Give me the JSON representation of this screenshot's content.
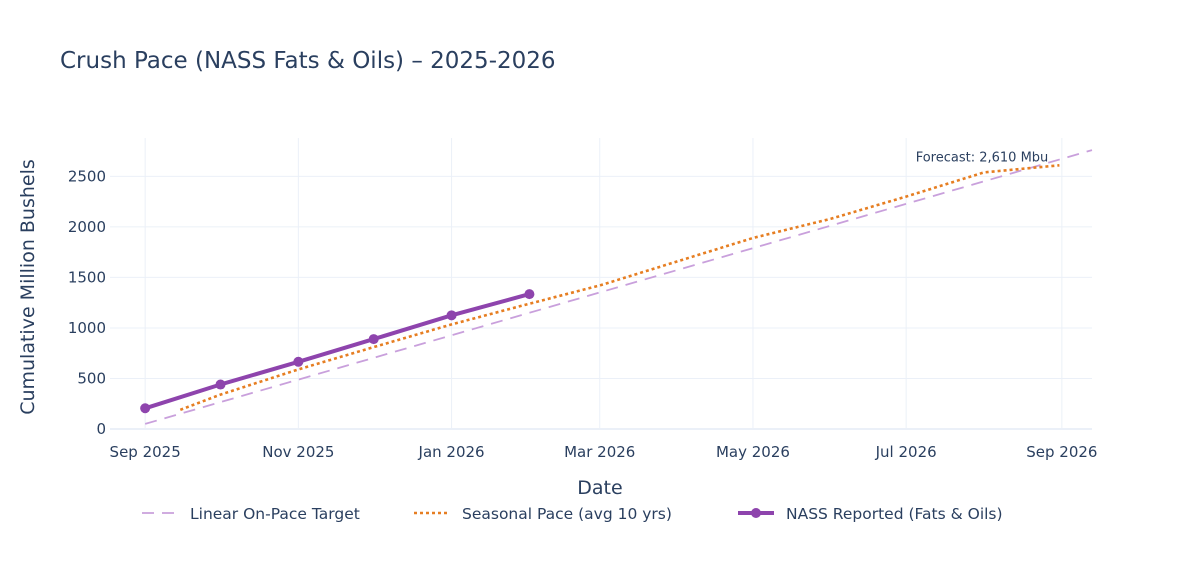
{
  "chart_data": {
    "type": "line",
    "title": "Crush Pace (NASS Fats & Oils) – 2025-2026",
    "xlabel": "Date",
    "ylabel": "Cumulative Million Bushels",
    "x_ticks": [
      "2025-09-01",
      "2025-11-01",
      "2026-01-01",
      "2026-03-01",
      "2026-05-01",
      "2026-07-01",
      "2026-09-01"
    ],
    "x_tick_labels": [
      "Sep 2025",
      "Nov 2025",
      "Jan 2026",
      "Mar 2026",
      "May 2026",
      "Jul 2026",
      "Sep 2026"
    ],
    "xlim": [
      "2025-08-18",
      "2026-09-13"
    ],
    "y_ticks": [
      0,
      500,
      1000,
      1500,
      2000,
      2500
    ],
    "ylim": [
      -10,
      2880
    ],
    "grid": true,
    "legend_position": "bottom",
    "series": [
      {
        "name": "Linear On-Pace Target",
        "style": "dash",
        "color": "#c9a0dc",
        "x": [
          "2025-09-01",
          "2026-09-13"
        ],
        "y": [
          50,
          2760
        ]
      },
      {
        "name": "Seasonal Pace (avg 10 yrs)",
        "style": "dot",
        "color": "#e67e22",
        "x": [
          "2025-09-15",
          "2025-10-01",
          "2025-11-01",
          "2025-12-01",
          "2026-01-01",
          "2026-02-01",
          "2026-03-01",
          "2026-04-01",
          "2026-05-01",
          "2026-06-01",
          "2026-07-01",
          "2026-08-01",
          "2026-08-31"
        ],
        "y": [
          190,
          340,
          590,
          810,
          1035,
          1240,
          1420,
          1660,
          1890,
          2080,
          2300,
          2540,
          2610
        ]
      },
      {
        "name": "NASS Reported (Fats & Oils)",
        "style": "solid-markers",
        "color": "#8e44ad",
        "x": [
          "2025-09-01",
          "2025-10-01",
          "2025-11-01",
          "2025-12-01",
          "2026-01-01",
          "2026-02-01"
        ],
        "y": [
          205,
          440,
          665,
          890,
          1125,
          1335
        ]
      }
    ],
    "annotations": [
      {
        "text": "Forecast: 2,610 Mbu",
        "x": "2026-08-01",
        "y": 2610
      }
    ]
  }
}
